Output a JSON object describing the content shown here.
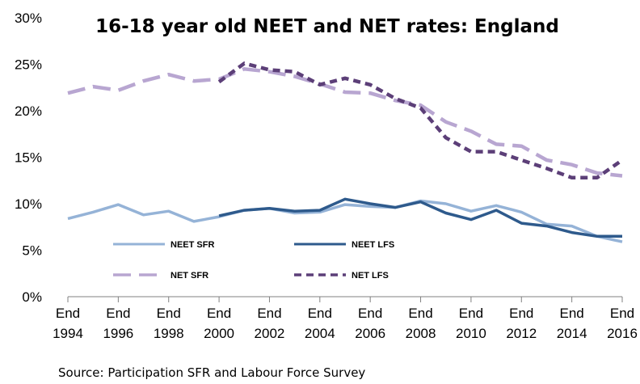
{
  "chart_data": {
    "type": "line",
    "title": "16-18 year old NEET and NET rates: England",
    "source": "Source: Participation SFR and Labour Force Survey",
    "x": [
      1994,
      1995,
      1996,
      1997,
      1998,
      1999,
      2000,
      2001,
      2002,
      2003,
      2004,
      2005,
      2006,
      2007,
      2008,
      2009,
      2010,
      2011,
      2012,
      2013,
      2014,
      2015,
      2016
    ],
    "x_ticks": [
      {
        "x": 1994,
        "line1": "End",
        "line2": "1994"
      },
      {
        "x": 1996,
        "line1": "End",
        "line2": "1996"
      },
      {
        "x": 1998,
        "line1": "End",
        "line2": "1998"
      },
      {
        "x": 2000,
        "line1": "End",
        "line2": "2000"
      },
      {
        "x": 2002,
        "line1": "End",
        "line2": "2002"
      },
      {
        "x": 2004,
        "line1": "End",
        "line2": "2004"
      },
      {
        "x": 2006,
        "line1": "End",
        "line2": "2006"
      },
      {
        "x": 2008,
        "line1": "End",
        "line2": "2008"
      },
      {
        "x": 2010,
        "line1": "End",
        "line2": "2010"
      },
      {
        "x": 2012,
        "line1": "End",
        "line2": "2012"
      },
      {
        "x": 2014,
        "line1": "End",
        "line2": "2014"
      },
      {
        "x": 2016,
        "line1": "End",
        "line2": "2016"
      }
    ],
    "y_ticks": [
      {
        "value": 0,
        "label": "0%"
      },
      {
        "value": 5,
        "label": "5%"
      },
      {
        "value": 10,
        "label": "10%"
      },
      {
        "value": 15,
        "label": "15%"
      },
      {
        "value": 20,
        "label": "20%"
      },
      {
        "value": 25,
        "label": "25%"
      },
      {
        "value": 30,
        "label": "30%"
      }
    ],
    "ylim": [
      0,
      30
    ],
    "xlim": [
      1994,
      2016
    ],
    "grid": false,
    "series": [
      {
        "name": "NEET SFR",
        "color": "#95b3d7",
        "style": "solid",
        "values": [
          8.4,
          9.1,
          9.9,
          8.8,
          9.2,
          8.1,
          8.6,
          9.3,
          9.5,
          9.0,
          9.1,
          9.9,
          9.7,
          9.6,
          10.3,
          10.0,
          9.2,
          9.8,
          9.1,
          7.8,
          7.6,
          6.5,
          5.9
        ]
      },
      {
        "name": "NEET LFS",
        "color": "#2e5a8c",
        "style": "solid",
        "values": [
          null,
          null,
          null,
          null,
          null,
          null,
          8.7,
          9.3,
          9.5,
          9.2,
          9.3,
          10.5,
          10.0,
          9.6,
          10.2,
          9.0,
          8.3,
          9.3,
          7.9,
          7.6,
          6.9,
          6.5,
          6.5
        ]
      },
      {
        "name": "NET SFR",
        "color": "#b8a6d1",
        "style": "dashed",
        "values": [
          21.9,
          22.6,
          22.2,
          23.2,
          23.9,
          23.2,
          23.4,
          24.5,
          24.2,
          23.7,
          22.9,
          22.0,
          21.9,
          21.1,
          20.6,
          18.8,
          17.8,
          16.4,
          16.2,
          14.7,
          14.2,
          13.3,
          13.0
        ]
      },
      {
        "name": "NET LFS",
        "color": "#5c3f78",
        "style": "dotted",
        "values": [
          null,
          null,
          null,
          null,
          null,
          null,
          23.1,
          25.1,
          24.4,
          24.2,
          22.8,
          23.5,
          22.8,
          21.3,
          20.3,
          17.1,
          15.6,
          15.6,
          14.7,
          13.8,
          12.8,
          12.8,
          14.7
        ]
      }
    ],
    "legend": [
      {
        "series": "NEET SFR",
        "label": "NEET SFR"
      },
      {
        "series": "NEET LFS",
        "label": "NEET LFS"
      },
      {
        "series": "NET SFR",
        "label": "NET SFR"
      },
      {
        "series": "NET LFS",
        "label": "NET LFS"
      }
    ]
  }
}
